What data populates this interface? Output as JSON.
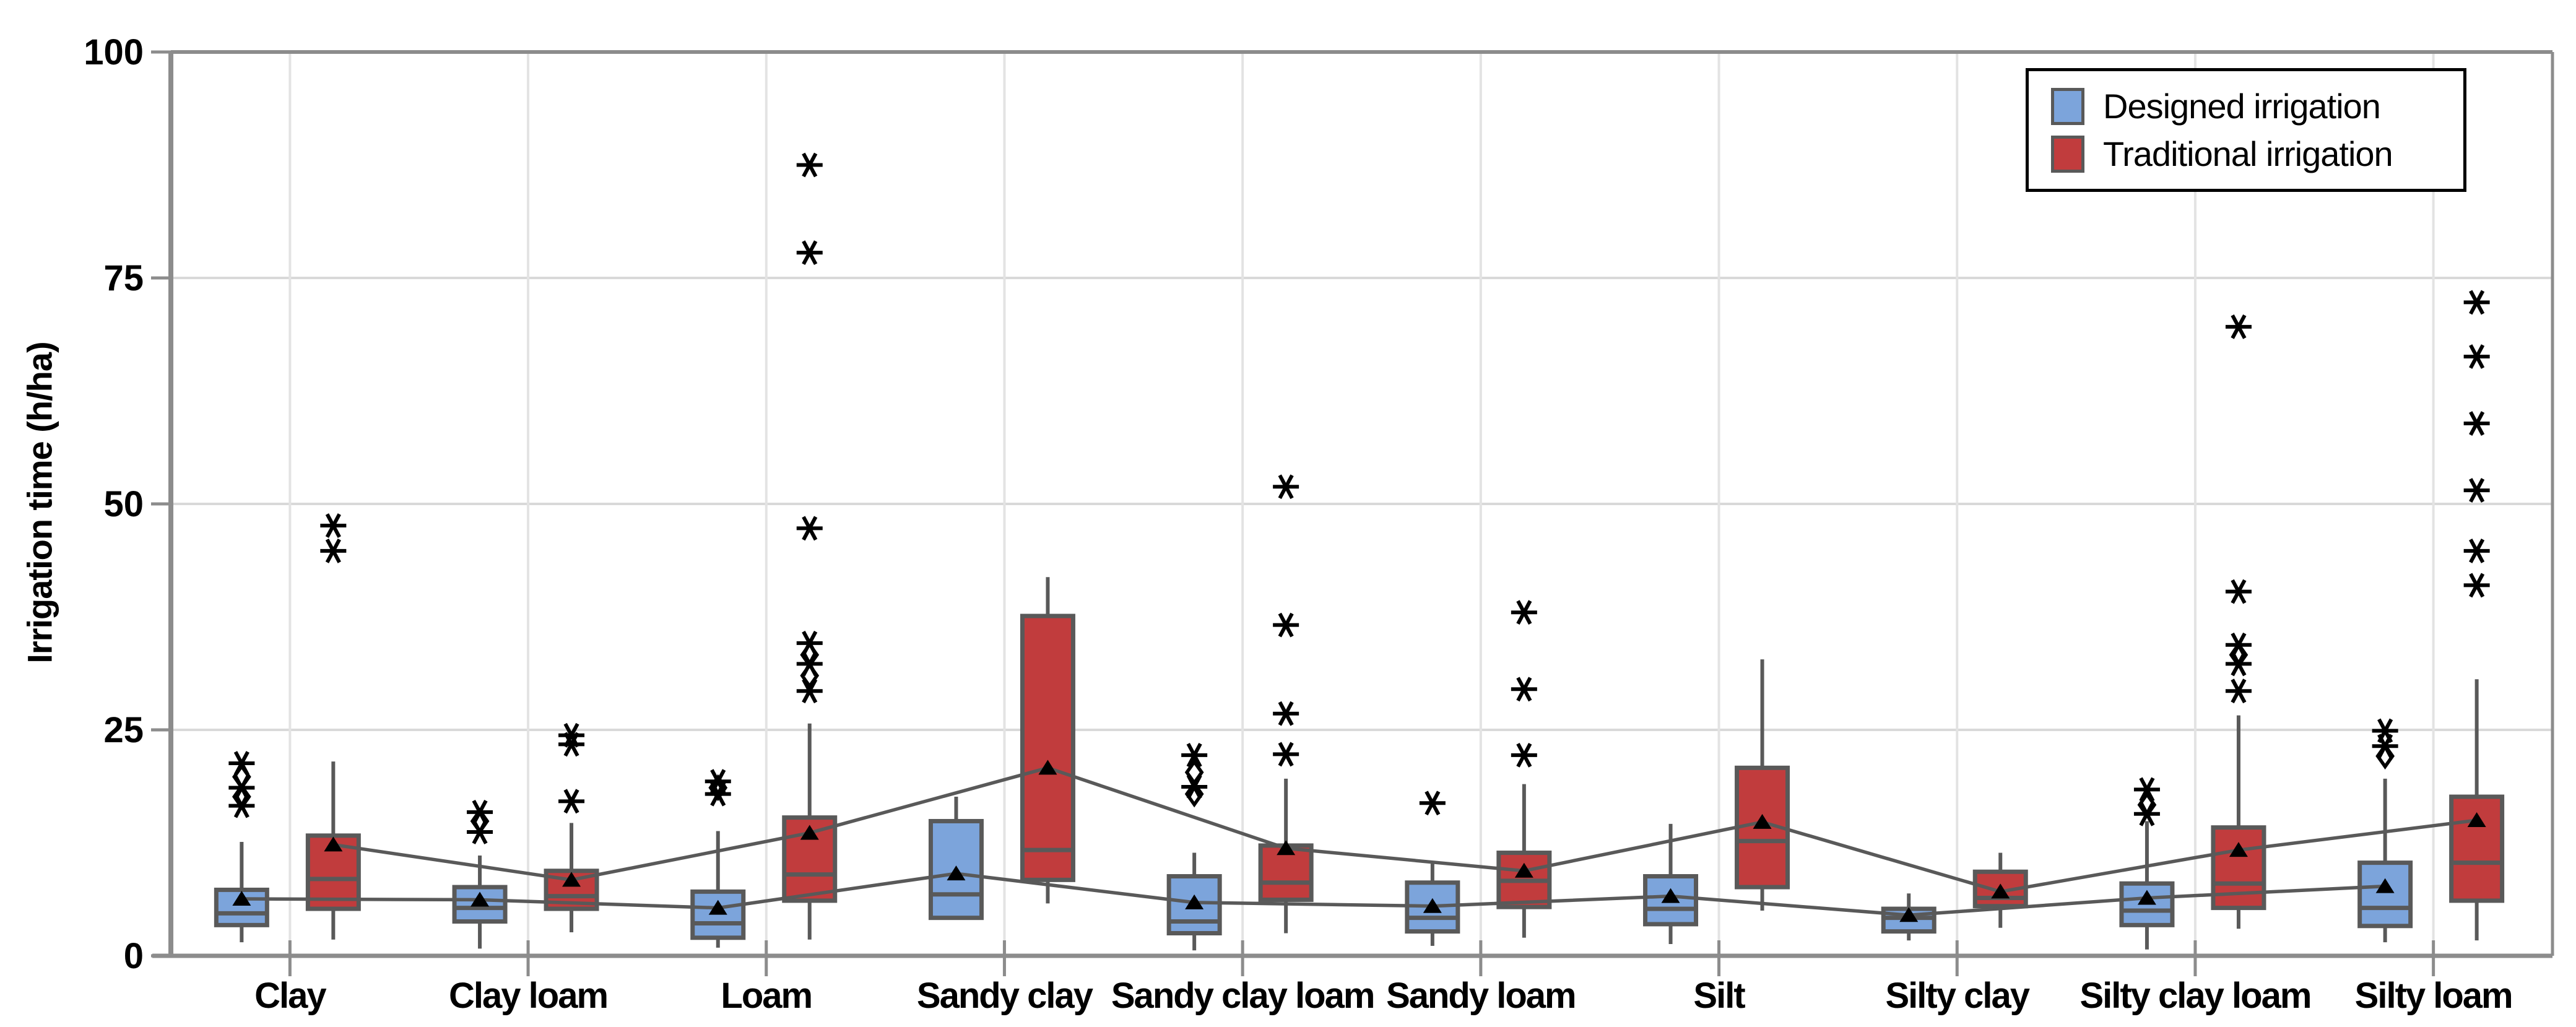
{
  "chart_data": {
    "type": "grouped-boxplot",
    "title": "",
    "xlabel": "",
    "ylabel": "Irrigation time (h/ha)",
    "ylim": [
      0,
      100
    ],
    "yticks": [
      0,
      25,
      50,
      75,
      100
    ],
    "grid": true,
    "legend_position": "top-right",
    "mean_marker": "filled-black-triangle",
    "mean_connector_lines": true,
    "categories": [
      "Clay",
      "Clay loam",
      "Loam",
      "Sandy clay",
      "Sandy clay loam",
      "Sandy loam",
      "Silt",
      "Silty clay",
      "Silty clay loam",
      "Silty loam"
    ],
    "series": [
      {
        "name": "Designed irrigation",
        "color": "#7CA4DB",
        "boxes": [
          {
            "low": 1.5,
            "q1": 3.4,
            "median": 4.7,
            "q3": 7.3,
            "high": 12.6,
            "mean": 6.3,
            "outliers": [
              {
                "v": 16.6,
                "shape": "star"
              },
              {
                "v": 17.6,
                "shape": "diamond"
              },
              {
                "v": 18.6,
                "shape": "star"
              },
              {
                "v": 19.8,
                "shape": "diamond"
              },
              {
                "v": 21.3,
                "shape": "star"
              }
            ]
          },
          {
            "low": 0.8,
            "q1": 3.8,
            "median": 5.3,
            "q3": 7.6,
            "high": 11.1,
            "mean": 6.2,
            "outliers": [
              {
                "v": 13.7,
                "shape": "star"
              },
              {
                "v": 14.9,
                "shape": "diamond"
              },
              {
                "v": 15.9,
                "shape": "star"
              }
            ]
          },
          {
            "low": 0.9,
            "q1": 2.0,
            "median": 3.6,
            "q3": 7.1,
            "high": 13.8,
            "mean": 5.3,
            "outliers": [
              {
                "v": 17.9,
                "shape": "star"
              },
              {
                "v": 18.6,
                "shape": "diamond"
              },
              {
                "v": 19.3,
                "shape": "star"
              }
            ]
          },
          {
            "low": 4.0,
            "q1": 4.2,
            "median": 6.8,
            "q3": 14.9,
            "high": 17.6,
            "mean": 9.1,
            "outliers": []
          },
          {
            "low": 0.6,
            "q1": 2.5,
            "median": 3.8,
            "q3": 8.8,
            "high": 11.4,
            "mean": 5.9,
            "outliers": [
              {
                "v": 17.9,
                "shape": "diamond"
              },
              {
                "v": 18.7,
                "shape": "star"
              },
              {
                "v": 20.3,
                "shape": "diamond"
              },
              {
                "v": 22.2,
                "shape": "star"
              }
            ]
          },
          {
            "low": 1.1,
            "q1": 2.7,
            "median": 4.2,
            "q3": 8.1,
            "high": 10.2,
            "mean": 5.5,
            "outliers": [
              {
                "v": 16.9,
                "shape": "star"
              }
            ]
          },
          {
            "low": 1.3,
            "q1": 3.5,
            "median": 5.2,
            "q3": 8.8,
            "high": 14.6,
            "mean": 6.6,
            "outliers": []
          },
          {
            "low": 1.7,
            "q1": 2.7,
            "median": 4.2,
            "q3": 5.2,
            "high": 6.9,
            "mean": 4.5,
            "outliers": []
          },
          {
            "low": 0.7,
            "q1": 3.4,
            "median": 5.0,
            "q3": 8.0,
            "high": 14.9,
            "mean": 6.4,
            "outliers": [
              {
                "v": 15.7,
                "shape": "star"
              },
              {
                "v": 16.7,
                "shape": "diamond"
              },
              {
                "v": 18.4,
                "shape": "star"
              }
            ]
          },
          {
            "low": 1.5,
            "q1": 3.3,
            "median": 5.3,
            "q3": 10.3,
            "high": 19.6,
            "mean": 7.7,
            "outliers": [
              {
                "v": 22.1,
                "shape": "diamond"
              },
              {
                "v": 23.2,
                "shape": "star"
              },
              {
                "v": 24.9,
                "shape": "star"
              }
            ]
          }
        ]
      },
      {
        "name": "Traditional irrigation",
        "color": "#C13C3D",
        "boxes": [
          {
            "low": 1.8,
            "q1": 5.2,
            "median": 8.5,
            "q3": 13.3,
            "high": 21.5,
            "mean": 12.3,
            "outliers": [
              {
                "v": 44.8,
                "shape": "star"
              },
              {
                "v": 47.6,
                "shape": "star"
              }
            ]
          },
          {
            "low": 2.6,
            "q1": 5.2,
            "median": 6.6,
            "q3": 9.4,
            "high": 14.7,
            "mean": 8.4,
            "outliers": [
              {
                "v": 17.1,
                "shape": "star"
              },
              {
                "v": 23.4,
                "shape": "star"
              },
              {
                "v": 24.4,
                "shape": "star"
              }
            ]
          },
          {
            "low": 1.8,
            "q1": 6.1,
            "median": 9.0,
            "q3": 15.3,
            "high": 25.7,
            "mean": 13.6,
            "outliers": [
              {
                "v": 29.3,
                "shape": "star"
              },
              {
                "v": 31.0,
                "shape": "diamond"
              },
              {
                "v": 32.3,
                "shape": "star"
              },
              {
                "v": 33.3,
                "shape": "diamond"
              },
              {
                "v": 34.6,
                "shape": "star"
              },
              {
                "v": 47.3,
                "shape": "star"
              },
              {
                "v": 77.8,
                "shape": "star"
              },
              {
                "v": 87.5,
                "shape": "star"
              }
            ]
          },
          {
            "low": 5.8,
            "q1": 8.4,
            "median": 11.7,
            "q3": 37.6,
            "high": 41.9,
            "mean": 20.8,
            "outliers": []
          },
          {
            "low": 2.5,
            "q1": 6.2,
            "median": 8.1,
            "q3": 12.2,
            "high": 19.6,
            "mean": 11.9,
            "outliers": [
              {
                "v": 22.3,
                "shape": "star"
              },
              {
                "v": 26.8,
                "shape": "star"
              },
              {
                "v": 36.6,
                "shape": "star"
              },
              {
                "v": 51.9,
                "shape": "star"
              }
            ]
          },
          {
            "low": 2.0,
            "q1": 5.4,
            "median": 8.3,
            "q3": 11.4,
            "high": 19.0,
            "mean": 9.4,
            "outliers": [
              {
                "v": 22.2,
                "shape": "star"
              },
              {
                "v": 29.5,
                "shape": "star"
              },
              {
                "v": 38.0,
                "shape": "star"
              }
            ]
          },
          {
            "low": 5.0,
            "q1": 7.6,
            "median": 12.7,
            "q3": 20.8,
            "high": 32.8,
            "mean": 14.8,
            "outliers": []
          },
          {
            "low": 3.1,
            "q1": 5.5,
            "median": 6.4,
            "q3": 9.3,
            "high": 11.4,
            "mean": 7.1,
            "outliers": []
          },
          {
            "low": 3.0,
            "q1": 5.3,
            "median": 8.0,
            "q3": 14.2,
            "high": 26.6,
            "mean": 11.7,
            "outliers": [
              {
                "v": 29.3,
                "shape": "star"
              },
              {
                "v": 32.3,
                "shape": "star"
              },
              {
                "v": 33.3,
                "shape": "diamond"
              },
              {
                "v": 34.4,
                "shape": "star"
              },
              {
                "v": 40.3,
                "shape": "star"
              },
              {
                "v": 69.6,
                "shape": "star"
              }
            ]
          },
          {
            "low": 1.7,
            "q1": 6.1,
            "median": 10.3,
            "q3": 17.6,
            "high": 30.6,
            "mean": 15.0,
            "outliers": [
              {
                "v": 41.0,
                "shape": "star"
              },
              {
                "v": 44.8,
                "shape": "star"
              },
              {
                "v": 51.5,
                "shape": "star"
              },
              {
                "v": 58.9,
                "shape": "star"
              },
              {
                "v": 66.3,
                "shape": "star"
              },
              {
                "v": 72.3,
                "shape": "star"
              }
            ]
          }
        ]
      }
    ]
  },
  "legend": {
    "items": [
      {
        "label": "Designed irrigation",
        "color": "#7CA4DB"
      },
      {
        "label": "Traditional irrigation",
        "color": "#C13C3D"
      }
    ]
  },
  "colors": {
    "background": "#FFFFFF",
    "box_border": "#595959",
    "whisker": "#595959",
    "median": "#595959",
    "mean_line": "#595959",
    "mean_marker": "#000000",
    "outlier": "#000000",
    "axis": "#8C8C8C",
    "grid_horizontal": "#D9D9D9",
    "grid_vertical": "#E3E3E3",
    "text": "#000000",
    "legend_border": "#000000"
  }
}
